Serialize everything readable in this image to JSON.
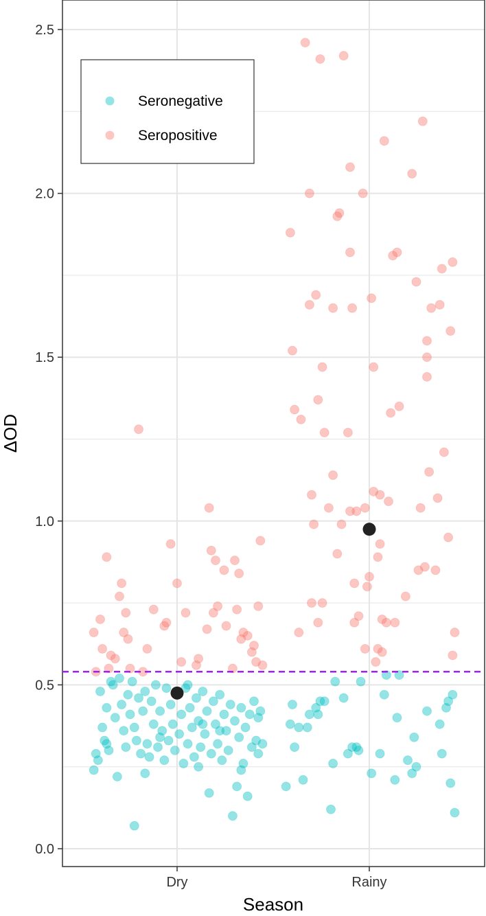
{
  "chart_data": {
    "type": "scatter",
    "title": "",
    "xlabel": "Season",
    "ylabel": "ΔOD",
    "categories": [
      "Dry",
      "Rainy"
    ],
    "ylim": [
      -0.05,
      2.62
    ],
    "y_ticks": [
      "0.0",
      "0.5",
      "1.0",
      "1.5",
      "2.0",
      "2.5"
    ],
    "grid": true,
    "legend_position": "top-left",
    "cutoff": 0.54,
    "colors": {
      "Seronegative": "#00BFC4",
      "Seropositive": "#F8766D",
      "mean": "#222222",
      "cutoff": "#A020F0",
      "grid": "#E5E5E5"
    },
    "series": [
      {
        "name": "Seronegative",
        "points": {
          "Dry": [
            [
              -0.39,
              0.24
            ],
            [
              -0.38,
              0.29
            ],
            [
              -0.37,
              0.27
            ],
            [
              -0.36,
              0.48
            ],
            [
              -0.35,
              0.37
            ],
            [
              -0.34,
              0.33
            ],
            [
              -0.33,
              0.43
            ],
            [
              -0.32,
              0.3
            ],
            [
              -0.31,
              0.51
            ],
            [
              -0.3,
              0.5
            ],
            [
              -0.29,
              0.4
            ],
            [
              -0.28,
              0.22
            ],
            [
              -0.27,
              0.52
            ],
            [
              -0.26,
              0.44
            ],
            [
              -0.25,
              0.36
            ],
            [
              -0.24,
              0.31
            ],
            [
              -0.23,
              0.47
            ],
            [
              -0.22,
              0.41
            ],
            [
              -0.21,
              0.51
            ],
            [
              -0.2,
              0.37
            ],
            [
              -0.19,
              0.33
            ],
            [
              -0.18,
              0.46
            ],
            [
              -0.17,
              0.29
            ],
            [
              -0.16,
              0.42
            ],
            [
              -0.15,
              0.48
            ],
            [
              -0.14,
              0.32
            ],
            [
              -0.13,
              0.28
            ],
            [
              -0.12,
              0.45
            ],
            [
              -0.11,
              0.38
            ],
            [
              -0.1,
              0.5
            ],
            [
              -0.09,
              0.31
            ],
            [
              -0.08,
              0.42
            ],
            [
              -0.07,
              0.36
            ],
            [
              -0.06,
              0.27
            ],
            [
              -0.05,
              0.49
            ],
            [
              -0.04,
              0.33
            ],
            [
              -0.03,
              0.44
            ],
            [
              -0.02,
              0.38
            ],
            [
              -0.01,
              0.3
            ],
            [
              0.0,
              0.47
            ],
            [
              0.01,
              0.35
            ],
            [
              0.02,
              0.41
            ],
            [
              0.03,
              0.26
            ],
            [
              0.04,
              0.49
            ],
            [
              0.05,
              0.32
            ],
            [
              0.06,
              0.43
            ],
            [
              0.07,
              0.37
            ],
            [
              0.08,
              0.28
            ],
            [
              0.09,
              0.46
            ],
            [
              0.1,
              0.39
            ],
            [
              0.11,
              0.31
            ],
            [
              0.12,
              0.48
            ],
            [
              0.13,
              0.35
            ],
            [
              0.14,
              0.42
            ],
            [
              0.15,
              0.17
            ],
            [
              0.16,
              0.29
            ],
            [
              0.17,
              0.45
            ],
            [
              0.18,
              0.38
            ],
            [
              0.19,
              0.32
            ],
            [
              0.2,
              0.47
            ],
            [
              0.21,
              0.27
            ],
            [
              0.22,
              0.41
            ],
            [
              0.23,
              0.36
            ],
            [
              0.24,
              0.3
            ],
            [
              0.25,
              0.44
            ],
            [
              0.26,
              0.1
            ],
            [
              0.27,
              0.39
            ],
            [
              0.28,
              0.19
            ],
            [
              0.29,
              0.34
            ],
            [
              0.3,
              0.43
            ],
            [
              0.31,
              0.26
            ],
            [
              0.32,
              0.37
            ],
            [
              0.33,
              0.16
            ],
            [
              0.34,
              0.41
            ],
            [
              0.35,
              0.31
            ],
            [
              0.36,
              0.45
            ],
            [
              0.37,
              0.33
            ],
            [
              0.38,
              0.29
            ],
            [
              0.39,
              0.42
            ],
            [
              0.4,
              0.32
            ],
            [
              -0.2,
              0.07
            ],
            [
              0.05,
              0.5
            ],
            [
              -0.15,
              0.23
            ],
            [
              0.1,
              0.25
            ],
            [
              0.2,
              0.36
            ],
            [
              0.3,
              0.24
            ],
            [
              0.38,
              0.4
            ],
            [
              -0.33,
              0.32
            ],
            [
              -0.08,
              0.34
            ],
            [
              0.12,
              0.38
            ]
          ],
          "Rainy": [
            [
              -0.39,
              0.19
            ],
            [
              -0.37,
              0.38
            ],
            [
              -0.36,
              0.44
            ],
            [
              -0.35,
              0.31
            ],
            [
              -0.33,
              0.37
            ],
            [
              -0.31,
              0.21
            ],
            [
              -0.29,
              0.37
            ],
            [
              -0.28,
              0.41
            ],
            [
              -0.25,
              0.43
            ],
            [
              -0.24,
              0.41
            ],
            [
              -0.23,
              0.45
            ],
            [
              -0.21,
              0.45
            ],
            [
              -0.18,
              0.12
            ],
            [
              -0.17,
              0.26
            ],
            [
              -0.16,
              0.51
            ],
            [
              -0.12,
              0.46
            ],
            [
              -0.1,
              0.29
            ],
            [
              -0.08,
              0.31
            ],
            [
              -0.06,
              0.31
            ],
            [
              -0.04,
              0.51
            ],
            [
              0.01,
              0.23
            ],
            [
              0.05,
              0.29
            ],
            [
              0.07,
              0.47
            ],
            [
              0.08,
              0.53
            ],
            [
              0.12,
              0.21
            ],
            [
              0.13,
              0.4
            ],
            [
              0.18,
              0.27
            ],
            [
              0.2,
              0.23
            ],
            [
              0.21,
              0.34
            ],
            [
              0.22,
              0.25
            ],
            [
              0.27,
              0.42
            ],
            [
              0.33,
              0.38
            ],
            [
              0.34,
              0.29
            ],
            [
              0.36,
              0.43
            ],
            [
              0.37,
              0.45
            ],
            [
              0.38,
              0.2
            ],
            [
              0.39,
              0.47
            ],
            [
              0.4,
              0.11
            ],
            [
              -0.05,
              0.3
            ],
            [
              0.14,
              0.53
            ]
          ]
        }
      },
      {
        "name": "Seropositive",
        "points": {
          "Dry": [
            [
              -0.39,
              0.66
            ],
            [
              -0.38,
              0.54
            ],
            [
              -0.36,
              0.7
            ],
            [
              -0.35,
              0.61
            ],
            [
              -0.33,
              0.89
            ],
            [
              -0.32,
              0.55
            ],
            [
              -0.31,
              0.59
            ],
            [
              -0.29,
              0.58
            ],
            [
              -0.27,
              0.77
            ],
            [
              -0.26,
              0.81
            ],
            [
              -0.25,
              0.66
            ],
            [
              -0.24,
              0.72
            ],
            [
              -0.23,
              0.64
            ],
            [
              -0.22,
              0.55
            ],
            [
              -0.18,
              1.28
            ],
            [
              -0.16,
              0.54
            ],
            [
              -0.14,
              0.61
            ],
            [
              -0.11,
              0.73
            ],
            [
              -0.06,
              0.68
            ],
            [
              -0.05,
              0.69
            ],
            [
              -0.03,
              0.93
            ],
            [
              0.0,
              0.81
            ],
            [
              0.02,
              0.57
            ],
            [
              0.04,
              0.72
            ],
            [
              0.09,
              0.56
            ],
            [
              0.1,
              0.58
            ],
            [
              0.14,
              0.67
            ],
            [
              0.15,
              1.04
            ],
            [
              0.16,
              0.91
            ],
            [
              0.17,
              0.72
            ],
            [
              0.18,
              0.88
            ],
            [
              0.19,
              0.74
            ],
            [
              0.22,
              0.85
            ],
            [
              0.23,
              0.68
            ],
            [
              0.26,
              0.55
            ],
            [
              0.27,
              0.88
            ],
            [
              0.28,
              0.73
            ],
            [
              0.29,
              0.84
            ],
            [
              0.3,
              0.64
            ],
            [
              0.31,
              0.66
            ],
            [
              0.33,
              0.65
            ],
            [
              0.35,
              0.6
            ],
            [
              0.36,
              0.62
            ],
            [
              0.37,
              0.57
            ],
            [
              0.38,
              0.74
            ],
            [
              0.39,
              0.94
            ],
            [
              0.4,
              0.56
            ]
          ],
          "Rainy": [
            [
              -0.37,
              1.88
            ],
            [
              -0.36,
              1.52
            ],
            [
              -0.35,
              1.34
            ],
            [
              -0.33,
              0.66
            ],
            [
              -0.32,
              1.31
            ],
            [
              -0.3,
              2.46
            ],
            [
              -0.28,
              1.66
            ],
            [
              -0.28,
              2.0
            ],
            [
              -0.27,
              1.08
            ],
            [
              -0.27,
              0.75
            ],
            [
              -0.26,
              0.99
            ],
            [
              -0.25,
              1.69
            ],
            [
              -0.24,
              0.69
            ],
            [
              -0.24,
              1.37
            ],
            [
              -0.23,
              2.41
            ],
            [
              -0.22,
              0.75
            ],
            [
              -0.22,
              1.47
            ],
            [
              -0.21,
              1.27
            ],
            [
              -0.19,
              1.04
            ],
            [
              -0.17,
              1.14
            ],
            [
              -0.17,
              1.65
            ],
            [
              -0.15,
              1.93
            ],
            [
              -0.15,
              0.9
            ],
            [
              -0.14,
              1.94
            ],
            [
              -0.13,
              0.99
            ],
            [
              -0.12,
              2.42
            ],
            [
              -0.1,
              1.27
            ],
            [
              -0.09,
              1.03
            ],
            [
              -0.09,
              2.08
            ],
            [
              -0.09,
              1.82
            ],
            [
              -0.08,
              1.65
            ],
            [
              -0.07,
              0.81
            ],
            [
              -0.07,
              0.69
            ],
            [
              -0.06,
              1.03
            ],
            [
              -0.05,
              0.71
            ],
            [
              -0.03,
              2.0
            ],
            [
              -0.02,
              1.04
            ],
            [
              -0.01,
              0.8
            ],
            [
              0.0,
              0.83
            ],
            [
              0.01,
              1.68
            ],
            [
              0.02,
              1.47
            ],
            [
              0.02,
              1.09
            ],
            [
              0.03,
              0.57
            ],
            [
              0.04,
              0.89
            ],
            [
              0.04,
              0.61
            ],
            [
              0.05,
              0.93
            ],
            [
              0.05,
              1.08
            ],
            [
              0.06,
              0.7
            ],
            [
              0.06,
              0.6
            ],
            [
              0.07,
              2.16
            ],
            [
              0.08,
              0.69
            ],
            [
              0.09,
              1.06
            ],
            [
              0.1,
              1.33
            ],
            [
              0.11,
              1.81
            ],
            [
              0.12,
              0.69
            ],
            [
              0.13,
              1.82
            ],
            [
              0.14,
              1.35
            ],
            [
              0.17,
              0.77
            ],
            [
              0.2,
              2.06
            ],
            [
              0.22,
              1.73
            ],
            [
              0.23,
              0.85
            ],
            [
              0.24,
              1.04
            ],
            [
              0.25,
              2.22
            ],
            [
              0.26,
              0.86
            ],
            [
              0.27,
              1.55
            ],
            [
              0.27,
              1.5
            ],
            [
              0.27,
              1.44
            ],
            [
              0.28,
              1.15
            ],
            [
              0.29,
              1.65
            ],
            [
              0.31,
              0.85
            ],
            [
              0.32,
              1.07
            ],
            [
              0.33,
              1.66
            ],
            [
              0.34,
              1.77
            ],
            [
              0.35,
              1.21
            ],
            [
              0.37,
              0.95
            ],
            [
              0.38,
              1.58
            ],
            [
              0.39,
              0.59
            ],
            [
              0.39,
              1.79
            ],
            [
              0.4,
              0.66
            ],
            [
              -0.02,
              0.61
            ]
          ]
        }
      }
    ],
    "means": {
      "Dry": 0.475,
      "Rainy": 0.975
    }
  }
}
